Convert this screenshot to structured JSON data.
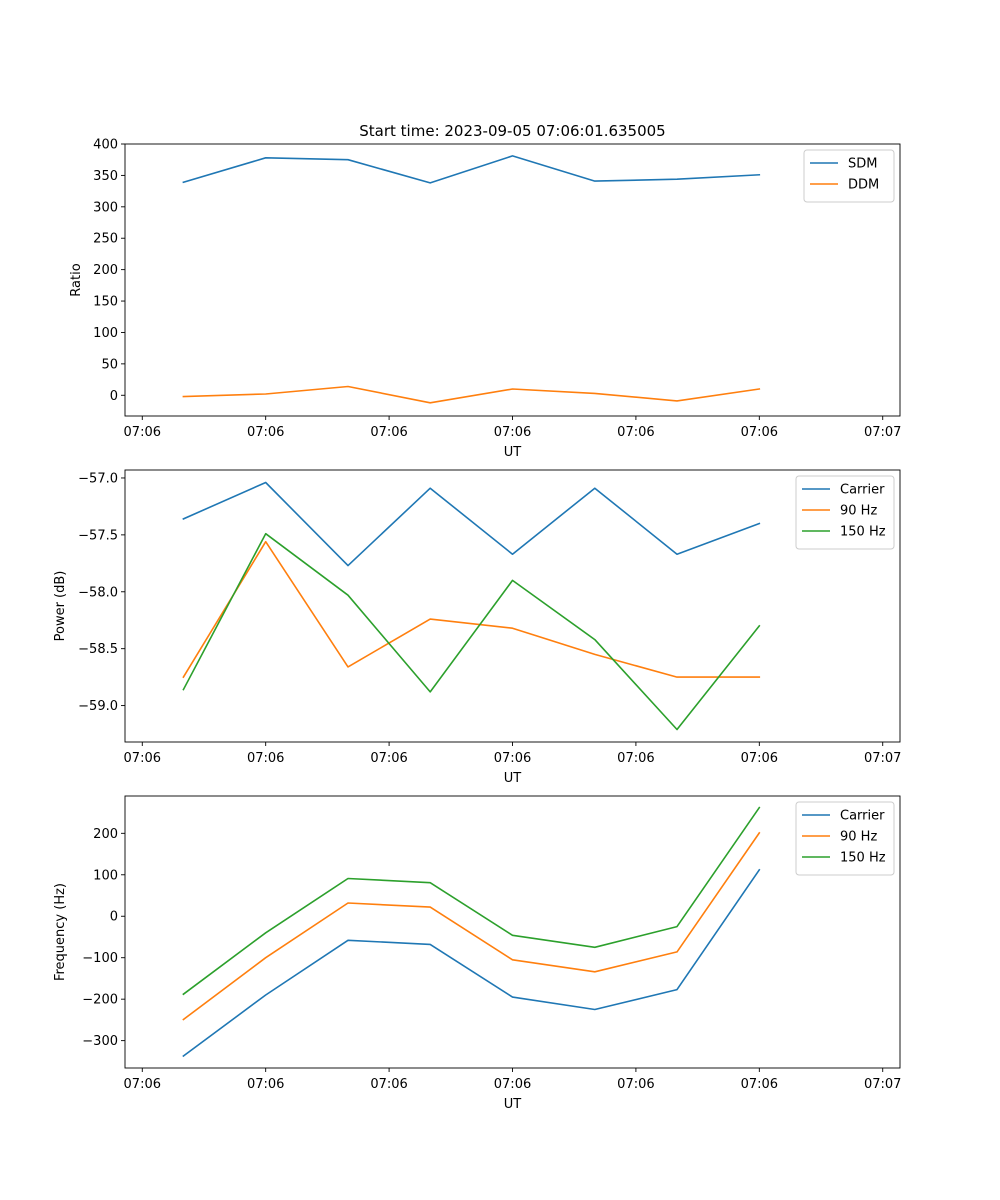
{
  "title": "Start time: 2023-09-05 07:06:01.635005",
  "colors": {
    "blue": "#1f77b4",
    "orange": "#ff7f0e",
    "green": "#2ca02c"
  },
  "chart_data": [
    {
      "type": "line",
      "title": "Start time: 2023-09-05 07:06:01.635005",
      "xlabel": "UT",
      "ylabel": "Ratio",
      "x": [
        1,
        2,
        3,
        4,
        5,
        6,
        7,
        8
      ],
      "xlim": [
        0.29,
        9.71
      ],
      "ylim": [
        -33,
        400
      ],
      "yticks": [
        0,
        50,
        100,
        150,
        200,
        250,
        300,
        350,
        400
      ],
      "xticks": [
        0.5,
        2.0,
        3.5,
        5.0,
        6.5,
        8.0,
        9.5
      ],
      "xtick_labels": [
        "07:06",
        "07:06",
        "07:06",
        "07:06",
        "07:06",
        "07:06",
        "07:07"
      ],
      "legend": "top-right",
      "series": [
        {
          "name": "SDM",
          "color": "#1f77b4",
          "values": [
            339,
            378,
            375,
            338,
            381,
            341,
            344,
            351
          ]
        },
        {
          "name": "DDM",
          "color": "#ff7f0e",
          "values": [
            -2,
            2,
            14,
            -12,
            10,
            3,
            -9,
            10
          ]
        }
      ]
    },
    {
      "type": "line",
      "title": "",
      "xlabel": "UT",
      "ylabel": "Power (dB)",
      "x": [
        1,
        2,
        3,
        4,
        5,
        6,
        7,
        8
      ],
      "xlim": [
        0.29,
        9.71
      ],
      "ylim": [
        -59.32,
        -56.93
      ],
      "yticks": [
        -59.0,
        -58.5,
        -58.0,
        -57.5,
        -57.0
      ],
      "ytick_labels": [
        "−59.0",
        "−58.5",
        "−58.0",
        "−57.5",
        "−57.0"
      ],
      "xticks": [
        0.5,
        2.0,
        3.5,
        5.0,
        6.5,
        8.0,
        9.5
      ],
      "xtick_labels": [
        "07:06",
        "07:06",
        "07:06",
        "07:06",
        "07:06",
        "07:06",
        "07:07"
      ],
      "legend": "top-right",
      "series": [
        {
          "name": "Carrier",
          "color": "#1f77b4",
          "values": [
            -57.36,
            -57.04,
            -57.77,
            -57.09,
            -57.67,
            -57.09,
            -57.67,
            -57.4
          ]
        },
        {
          "name": "90 Hz",
          "color": "#ff7f0e",
          "values": [
            -58.75,
            -57.56,
            -58.66,
            -58.24,
            -58.32,
            -58.55,
            -58.75,
            -58.75
          ]
        },
        {
          "name": "150 Hz",
          "color": "#2ca02c",
          "values": [
            -58.86,
            -57.49,
            -58.03,
            -58.88,
            -57.9,
            -58.42,
            -59.21,
            -58.3
          ]
        }
      ]
    },
    {
      "type": "line",
      "title": "",
      "xlabel": "UT",
      "ylabel": "Frequency (Hz)",
      "x": [
        1,
        2,
        3,
        4,
        5,
        6,
        7,
        8
      ],
      "xlim": [
        0.29,
        9.71
      ],
      "ylim": [
        -366,
        290
      ],
      "yticks": [
        -300,
        -200,
        -100,
        0,
        100,
        200
      ],
      "ytick_labels": [
        "−300",
        "−200",
        "−100",
        "0",
        "100",
        "200"
      ],
      "xticks": [
        0.5,
        2.0,
        3.5,
        5.0,
        6.5,
        8.0,
        9.5
      ],
      "xtick_labels": [
        "07:06",
        "07:06",
        "07:06",
        "07:06",
        "07:06",
        "07:06",
        "07:07"
      ],
      "legend": "top-right",
      "series": [
        {
          "name": "Carrier",
          "color": "#1f77b4",
          "values": [
            -337,
            -190,
            -58,
            -68,
            -195,
            -225,
            -177,
            112
          ]
        },
        {
          "name": "90 Hz",
          "color": "#ff7f0e",
          "values": [
            -249,
            -100,
            32,
            22,
            -105,
            -134,
            -86,
            201
          ]
        },
        {
          "name": "150 Hz",
          "color": "#2ca02c",
          "values": [
            -188,
            -40,
            91,
            81,
            -46,
            -75,
            -25,
            262
          ]
        }
      ]
    }
  ]
}
